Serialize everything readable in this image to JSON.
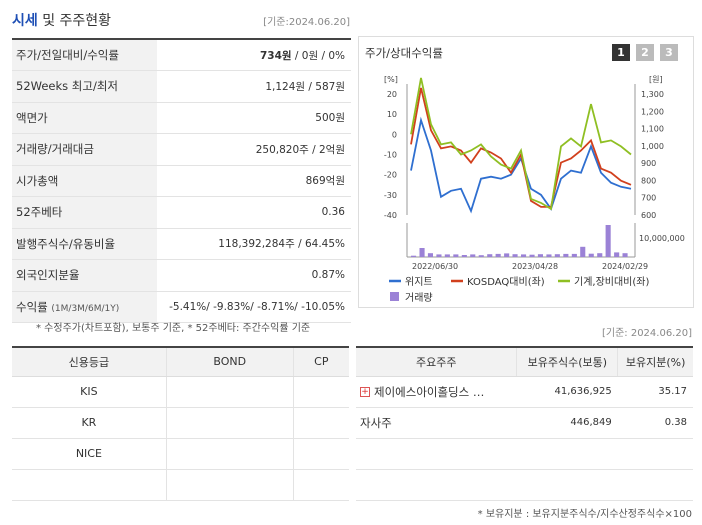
{
  "header": {
    "title_accent": "시세",
    "title_rest": " 및 주주현황",
    "date": "[기준:2024.06.20]"
  },
  "info_rows": [
    {
      "label": "주가/전일대비/수익률",
      "value": "734원 / 0원 / 0%"
    },
    {
      "label": "52Weeks 최고/최저",
      "value": "1,124원 / 587원"
    },
    {
      "label": "액면가",
      "value": "500원"
    },
    {
      "label": "거래량/거래대금",
      "value": "250,820주 / 2억원"
    },
    {
      "label": "시가총액",
      "value": "869억원"
    },
    {
      "label": "52주베타",
      "value": "0.36"
    },
    {
      "label": "발행주식수/유동비율",
      "value": "118,392,284주 / 64.45%"
    },
    {
      "label": "외국인지분율",
      "value": "0.87%"
    }
  ],
  "return_row": {
    "label": "수익률",
    "label_sub": "(1M/3M/6M/1Y)",
    "values": "-5.41%/ -9.83%/ -8.71%/ -10.05%"
  },
  "note_left": "* 수정주가(차트포함), 보통주 기준, * 52주베타: 주간수익률 기준",
  "note_right_date": "[기준: 2024.06.20]",
  "chart": {
    "title": "주가/상대수익률",
    "pages": [
      "1",
      "2",
      "3"
    ],
    "left_unit": "[%]",
    "right_unit": "[원]",
    "volume_tick": "10,000,000",
    "legend": [
      "위지트",
      "KOSDAQ대비(좌)",
      "기계,장비대비(좌)",
      "거래량"
    ]
  },
  "chart_data": {
    "type": "line",
    "x_ticks": [
      "2022/06/30",
      "2023/04/28",
      "2024/02/29"
    ],
    "left_axis": {
      "ticks": [
        20,
        10,
        0,
        -10,
        -20,
        -30,
        -40
      ],
      "range": [
        -40,
        20
      ]
    },
    "right_axis": {
      "ticks": [
        "1,300",
        "1,200",
        "1,100",
        "1,000",
        "900",
        "800",
        "700",
        "600"
      ],
      "range": [
        600,
        1300
      ]
    },
    "series": [
      {
        "name": "위지트",
        "color": "#2f6fd0",
        "values": [
          -18,
          7,
          -8,
          -31,
          -28,
          -27,
          -38,
          -22,
          -21,
          -22,
          -20,
          -12,
          -27,
          -30,
          -37,
          -22,
          -18,
          -19,
          -6,
          -19,
          -24,
          -26,
          -27
        ]
      },
      {
        "name": "KOSDAQ대비(좌)",
        "color": "#d1401d",
        "values": [
          -5,
          23,
          2,
          -7,
          -6,
          -8,
          -14,
          -7,
          -9,
          -12,
          -19,
          -10,
          -33,
          -36,
          -36,
          -14,
          -12,
          -8,
          -3,
          -17,
          -19,
          -23,
          -25
        ]
      },
      {
        "name": "기계,장비대비(좌)",
        "color": "#8fbf23",
        "values": [
          0,
          28,
          5,
          -5,
          -4,
          -10,
          -8,
          -5,
          -11,
          -15,
          -17,
          -8,
          -32,
          -34,
          -37,
          -6,
          -2,
          -6,
          15,
          -4,
          -3,
          -6,
          -10
        ]
      }
    ],
    "volume": [
      0.5,
      3.5,
      1.5,
      1,
      1,
      1,
      0.8,
      1,
      0.7,
      1.1,
      1.2,
      1.4,
      1.1,
      1,
      0.9,
      1.1,
      1,
      1.1,
      1.2,
      1.2,
      4,
      1.3,
      1.5,
      12.5,
      1.8,
      1.5
    ]
  },
  "credit": {
    "headers": [
      "신용등급",
      "BOND",
      "CP"
    ],
    "rows": [
      [
        "KIS",
        "",
        ""
      ],
      [
        "KR",
        "",
        ""
      ],
      [
        "NICE",
        "",
        ""
      ],
      [
        "",
        "",
        ""
      ]
    ]
  },
  "holders": {
    "headers": [
      "주요주주",
      "보유주식수(보통)",
      "보유지분(%)"
    ],
    "rows": [
      {
        "name": "제이에스아이홀딩스 …",
        "shares": "41,636,925",
        "pct": "35.17",
        "expandable": true
      },
      {
        "name": "자사주",
        "shares": "446,849",
        "pct": "0.38",
        "expandable": false
      }
    ]
  },
  "note_bottom": "* 보유지분 : 보유지분주식수/지수산정주식수×100"
}
